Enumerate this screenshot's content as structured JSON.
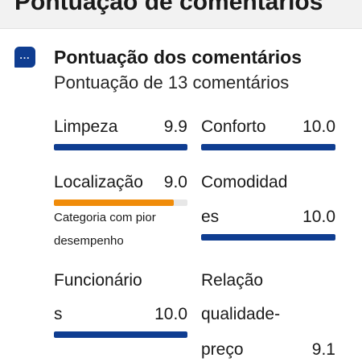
{
  "header": {
    "title": "Pontuação de comentários"
  },
  "section": {
    "icon": "chat-bubble-icon",
    "title": "Pontuação dos comentários",
    "subtitle": "Pontuação de 13 comentários"
  },
  "colors": {
    "bar_default": "#0f3d91",
    "bar_worst": "#f08c0a",
    "track": "#e7e7e7"
  },
  "max_score": 10,
  "categories": [
    {
      "id": "limpeza",
      "label_lines": [
        "Limpeza"
      ],
      "score": "9.9",
      "value": 9.9,
      "worst": false
    },
    {
      "id": "conforto",
      "label_lines": [
        "Conforto"
      ],
      "score": "10.0",
      "value": 10.0,
      "worst": false
    },
    {
      "id": "localizacao",
      "label_lines": [
        "Localização"
      ],
      "score": "9.0",
      "value": 9.0,
      "worst": true,
      "note_lines": [
        "Categoria com pior",
        "desempenho"
      ]
    },
    {
      "id": "comodidades",
      "label_lines": [
        "Comodidad",
        "es"
      ],
      "score": "10.0",
      "value": 10.0,
      "worst": false
    },
    {
      "id": "funcionarios",
      "label_lines": [
        "Funcionário",
        "s"
      ],
      "score": "10.0",
      "value": 10.0,
      "worst": false
    },
    {
      "id": "relacao",
      "label_lines": [
        "Relação",
        "qualidade-",
        "preço"
      ],
      "score": "9.1",
      "value": 9.1,
      "worst": false
    }
  ]
}
